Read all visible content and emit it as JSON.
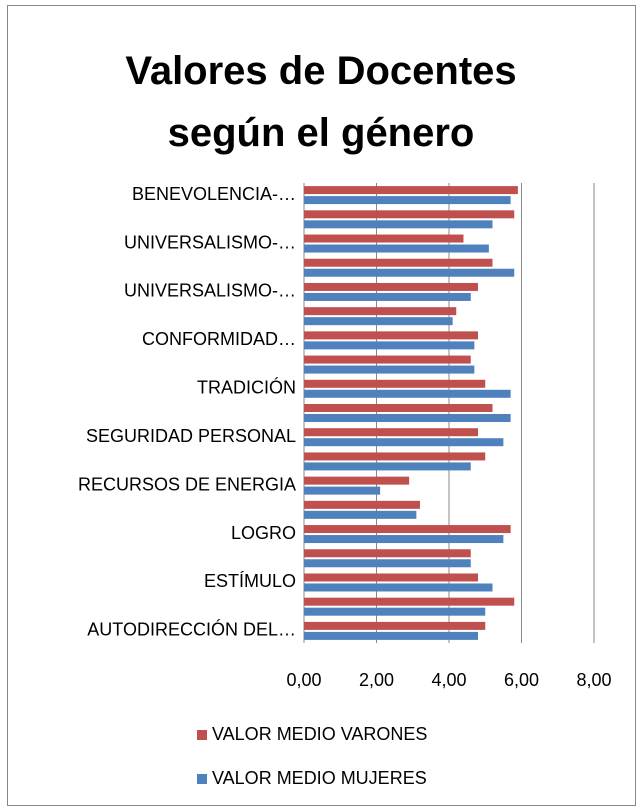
{
  "chart_data": {
    "type": "barh",
    "title": "Valores de Docentes según el género",
    "categories": [
      "BENEVOLENCIA-…",
      null,
      "UNIVERSALISMO-…",
      null,
      "UNIVERSALISMO-…",
      null,
      "CONFORMIDAD…",
      null,
      "TRADICIÓN",
      null,
      "SEGURIDAD PERSONAL",
      null,
      "RECURSOS DE ENERGIA",
      null,
      "LOGRO",
      null,
      "ESTÍMULO",
      null,
      "AUTODIRECCIÓN DEL…"
    ],
    "series": [
      {
        "name": "VALOR MEDIO VARONES",
        "color": "#c0504d",
        "values": [
          5.9,
          5.8,
          4.4,
          5.2,
          4.8,
          4.2,
          4.8,
          4.6,
          5.0,
          5.2,
          4.8,
          5.0,
          2.9,
          3.2,
          5.7,
          4.6,
          4.8,
          5.8,
          5.0
        ]
      },
      {
        "name": "VALOR MEDIO MUJERES",
        "color": "#4f81bd",
        "values": [
          5.7,
          5.2,
          5.1,
          5.8,
          4.6,
          4.1,
          4.7,
          4.7,
          5.7,
          5.7,
          5.5,
          4.6,
          2.1,
          3.1,
          5.5,
          4.6,
          5.2,
          5.0,
          4.8
        ]
      }
    ],
    "xlim": [
      0,
      8
    ],
    "xticks": [
      {
        "value": 0,
        "label": "0,00"
      },
      {
        "value": 2,
        "label": "2,00"
      },
      {
        "value": 4,
        "label": "4,00"
      },
      {
        "value": 6,
        "label": "6,00"
      },
      {
        "value": 8,
        "label": "8,00"
      }
    ],
    "grid": true
  }
}
